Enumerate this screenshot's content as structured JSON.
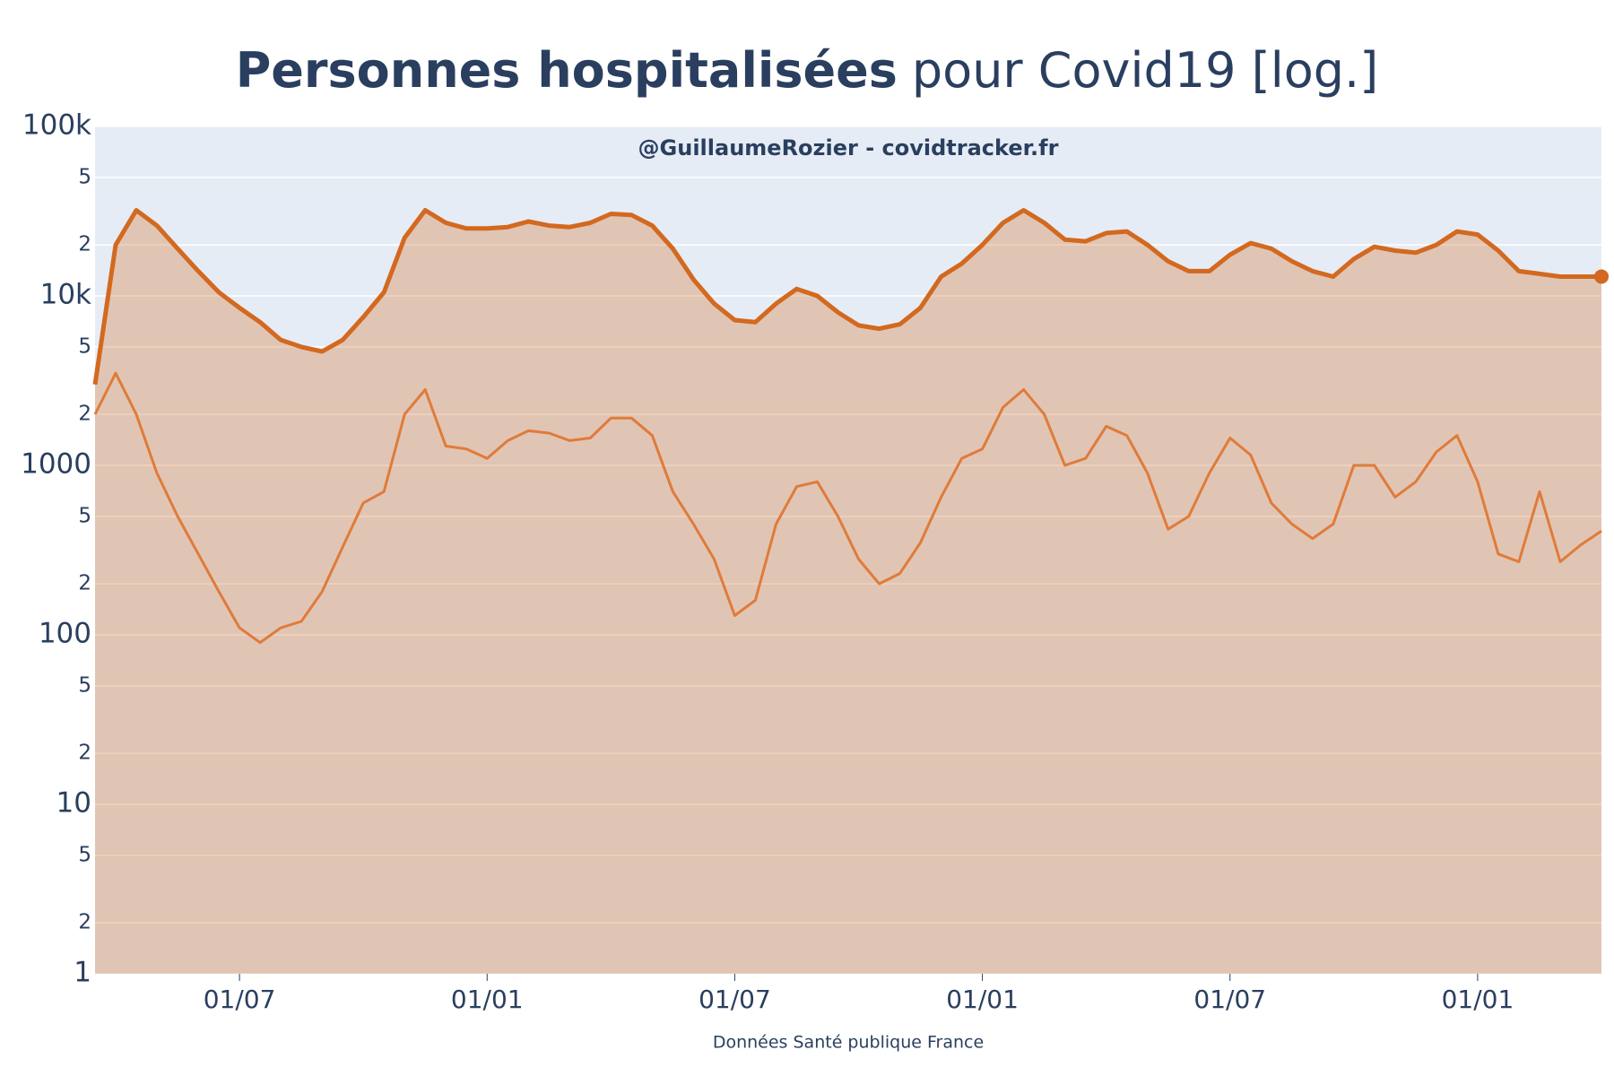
{
  "chart_data": {
    "type": "line",
    "title_parts": [
      "Personnes hospitalisées",
      "pour Covid19 [log.]"
    ],
    "annotation": "@GuillaumeRozier - covidtracker.fr",
    "x_label": "Données Santé publique France",
    "log_y": true,
    "grid": true,
    "background": "#e5ecf6",
    "categories": [
      null,
      null,
      null,
      null,
      null,
      null,
      null,
      "01/07",
      null,
      null,
      null,
      null,
      null,
      null,
      null,
      null,
      null,
      null,
      null,
      "01/01",
      null,
      null,
      null,
      null,
      null,
      null,
      null,
      null,
      null,
      null,
      null,
      "01/07",
      null,
      null,
      null,
      null,
      null,
      null,
      null,
      null,
      null,
      null,
      null,
      "01/01",
      null,
      null,
      null,
      null,
      null,
      null,
      null,
      null,
      null,
      null,
      null,
      "01/07",
      null,
      null,
      null,
      null,
      null,
      null,
      null,
      null,
      null,
      null,
      null,
      "01/01",
      null,
      null,
      null,
      null,
      null,
      null
    ],
    "series": [
      {
        "color": "#d3691f",
        "fill": "rgba(211,105,31,0.3)",
        "width": 5,
        "end_marker": true,
        "values": [
          3000,
          20000,
          32000,
          26000,
          19000,
          14000,
          10500,
          8500,
          7000,
          5500,
          5000,
          4700,
          5500,
          7500,
          10500,
          22000,
          32000,
          27000,
          25000,
          25000,
          25500,
          27500,
          26000,
          25500,
          27000,
          30500,
          30000,
          26000,
          19000,
          12500,
          9000,
          7200,
          7000,
          9000,
          11000,
          10000,
          8000,
          6700,
          6400,
          6800,
          8500,
          13000,
          15500,
          20000,
          27000,
          32000,
          27000,
          21500,
          21000,
          23500,
          24000,
          20000,
          16000,
          14000,
          14000,
          17500,
          20500,
          19000,
          16000,
          14000,
          13000,
          16500,
          19500,
          18500,
          18000,
          20000,
          24000,
          23000,
          18500,
          14000,
          13500,
          13000,
          13000,
          13000
        ]
      },
      {
        "color": "#e07b39",
        "width": 3,
        "values": [
          2000,
          3500,
          2000,
          900,
          500,
          300,
          180,
          110,
          90,
          110,
          120,
          180,
          330,
          600,
          700,
          2000,
          2800,
          1300,
          1250,
          1100,
          1400,
          1600,
          1550,
          1400,
          1450,
          1900,
          1900,
          1500,
          700,
          450,
          280,
          130,
          160,
          450,
          750,
          800,
          500,
          280,
          200,
          230,
          350,
          650,
          1100,
          1250,
          2200,
          2800,
          2000,
          1000,
          1100,
          1700,
          1500,
          900,
          420,
          500,
          900,
          1450,
          1150,
          600,
          450,
          370,
          450,
          1000,
          1000,
          650,
          800,
          1200,
          1500,
          800,
          300,
          270,
          700,
          270,
          340,
          410
        ]
      }
    ],
    "ylim": [
      1,
      100000
    ],
    "yticks": [
      1,
      2,
      5,
      10,
      {
        "value": 20,
        "label": "2"
      },
      {
        "value": 50,
        "label": "5"
      },
      100,
      {
        "value": 200,
        "label": "2"
      },
      {
        "value": 500,
        "label": "5"
      },
      1000,
      {
        "value": 2000,
        "label": "2"
      },
      {
        "value": 5000,
        "label": "5"
      },
      {
        "value": 10000,
        "label": "10k"
      },
      {
        "value": 20000,
        "label": "2"
      },
      {
        "value": 50000,
        "label": "5"
      },
      {
        "value": 100000,
        "label": "100k"
      }
    ]
  }
}
